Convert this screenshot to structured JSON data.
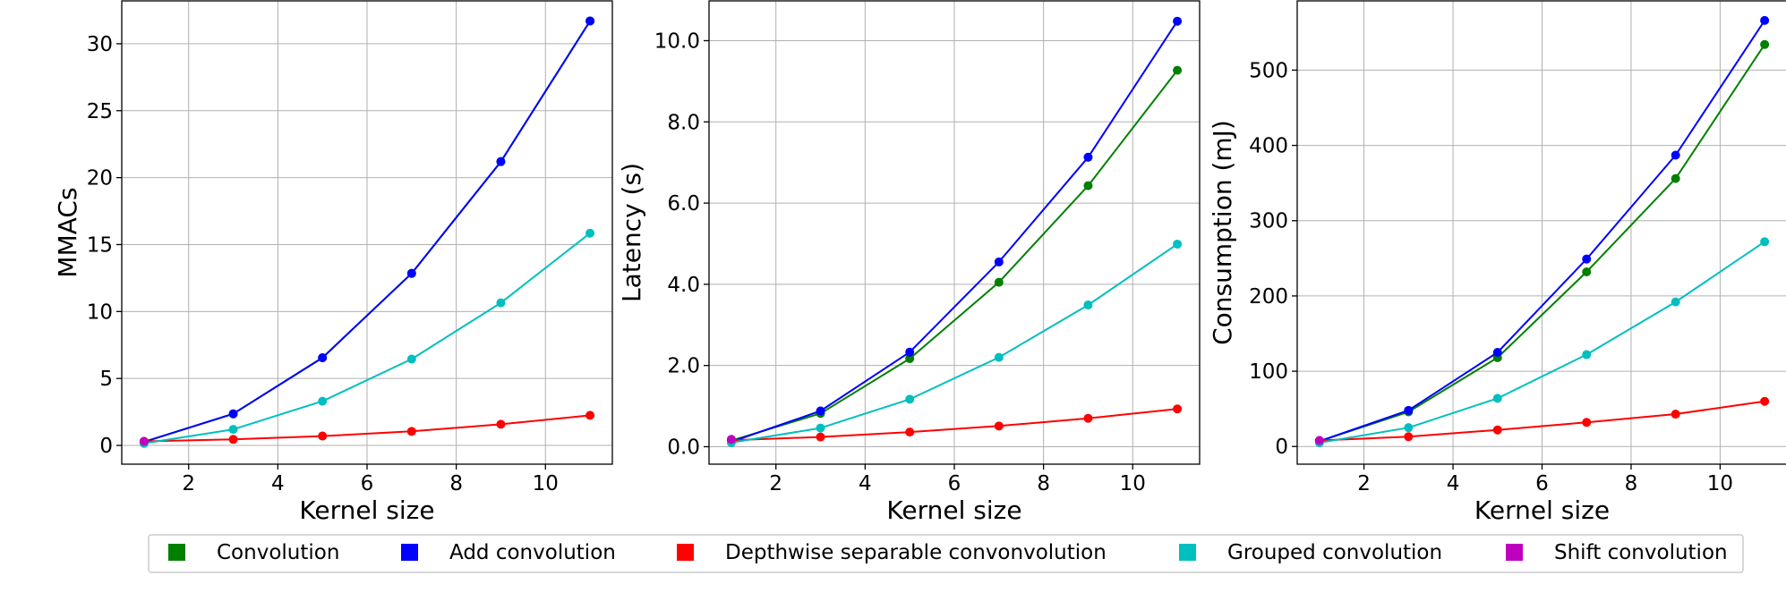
{
  "chart_data": [
    {
      "type": "line",
      "xlabel": "Kernel size",
      "ylabel": "MMACs",
      "xlim": [
        0.5,
        11.5
      ],
      "ylim": [
        -1.4,
        33.2
      ],
      "xticks": [
        2,
        4,
        6,
        8,
        10
      ],
      "yticks": [
        0,
        5,
        10,
        15,
        20,
        25,
        30
      ],
      "ytick_labels": [
        "0",
        "5",
        "10",
        "15",
        "20",
        "25",
        "30"
      ],
      "grid": true,
      "series": [
        {
          "name": "Convolution",
          "color": "#008000",
          "x": [
            1,
            3,
            5,
            7,
            9,
            11
          ],
          "y": [
            0.26,
            2.36,
            6.55,
            12.85,
            21.2,
            31.7
          ]
        },
        {
          "name": "Add convolution",
          "color": "#0000ff",
          "x": [
            1,
            3,
            5,
            7,
            9,
            11
          ],
          "y": [
            0.26,
            2.36,
            6.55,
            12.85,
            21.2,
            31.7
          ]
        },
        {
          "name": "Depthwise separable convonvolution",
          "color": "#ff0000",
          "x": [
            1,
            3,
            5,
            7,
            9,
            11
          ],
          "y": [
            0.3,
            0.45,
            0.7,
            1.05,
            1.58,
            2.25
          ]
        },
        {
          "name": "Grouped convolution",
          "color": "#00bfbf",
          "x": [
            1,
            3,
            5,
            7,
            9,
            11
          ],
          "y": [
            0.15,
            1.2,
            3.3,
            6.45,
            10.65,
            15.85
          ]
        },
        {
          "name": "Shift convolution",
          "color": "#bf00bf",
          "x": [
            1
          ],
          "y": [
            0.3
          ]
        }
      ]
    },
    {
      "type": "line",
      "xlabel": "Kernel size",
      "ylabel": "Latency (s)",
      "xlim": [
        0.5,
        11.5
      ],
      "ylim": [
        -0.43,
        10.98
      ],
      "xticks": [
        2,
        4,
        6,
        8,
        10
      ],
      "yticks": [
        0,
        2,
        4,
        6,
        8,
        10
      ],
      "ytick_labels": [
        "0.0",
        "2.0",
        "4.0",
        "6.0",
        "8.0",
        "10.0"
      ],
      "grid": true,
      "series": [
        {
          "name": "Convolution",
          "color": "#008000",
          "x": [
            1,
            3,
            5,
            7,
            9,
            11
          ],
          "y": [
            0.15,
            0.82,
            2.17,
            4.05,
            6.43,
            9.27
          ]
        },
        {
          "name": "Add convolution",
          "color": "#0000ff",
          "x": [
            1,
            3,
            5,
            7,
            9,
            11
          ],
          "y": [
            0.12,
            0.88,
            2.33,
            4.55,
            7.13,
            10.48
          ]
        },
        {
          "name": "Depthwise separable convonvolution",
          "color": "#ff0000",
          "x": [
            1,
            3,
            5,
            7,
            9,
            11
          ],
          "y": [
            0.16,
            0.24,
            0.36,
            0.51,
            0.7,
            0.93
          ]
        },
        {
          "name": "Grouped convolution",
          "color": "#00bfbf",
          "x": [
            1,
            3,
            5,
            7,
            9,
            11
          ],
          "y": [
            0.1,
            0.46,
            1.17,
            2.2,
            3.49,
            4.99
          ]
        },
        {
          "name": "Shift convolution",
          "color": "#bf00bf",
          "x": [
            1
          ],
          "y": [
            0.18
          ]
        }
      ]
    },
    {
      "type": "line",
      "xlabel": "Kernel size",
      "ylabel": "Consumption (mJ)",
      "xlim": [
        0.5,
        11.5
      ],
      "ylim": [
        -23.5,
        592
      ],
      "xticks": [
        2,
        4,
        6,
        8,
        10
      ],
      "yticks": [
        0,
        100,
        200,
        300,
        400,
        500
      ],
      "ytick_labels": [
        "0",
        "100",
        "200",
        "300",
        "400",
        "500"
      ],
      "grid": true,
      "series": [
        {
          "name": "Convolution",
          "color": "#008000",
          "x": [
            1,
            3,
            5,
            7,
            9,
            11
          ],
          "y": [
            7,
            46,
            118,
            232,
            356,
            534
          ]
        },
        {
          "name": "Add convolution",
          "color": "#0000ff",
          "x": [
            1,
            3,
            5,
            7,
            9,
            11
          ],
          "y": [
            7,
            48,
            125,
            249,
            387,
            566
          ]
        },
        {
          "name": "Depthwise separable convonvolution",
          "color": "#ff0000",
          "x": [
            1,
            3,
            5,
            7,
            9,
            11
          ],
          "y": [
            8,
            13,
            22,
            32,
            43,
            60
          ]
        },
        {
          "name": "Grouped convolution",
          "color": "#00bfbf",
          "x": [
            1,
            3,
            5,
            7,
            9,
            11
          ],
          "y": [
            5,
            25,
            64,
            122,
            192,
            272
          ]
        },
        {
          "name": "Shift convolution",
          "color": "#bf00bf",
          "x": [
            1
          ],
          "y": [
            8
          ]
        }
      ]
    }
  ],
  "legend": {
    "placement": "bottom",
    "entries": [
      {
        "label": "Convolution",
        "color": "#008000"
      },
      {
        "label": "Add convolution",
        "color": "#0000ff"
      },
      {
        "label": "Depthwise separable convonvolution",
        "color": "#ff0000"
      },
      {
        "label": "Grouped convolution",
        "color": "#00bfbf"
      },
      {
        "label": "Shift convolution",
        "color": "#bf00bf"
      }
    ]
  }
}
